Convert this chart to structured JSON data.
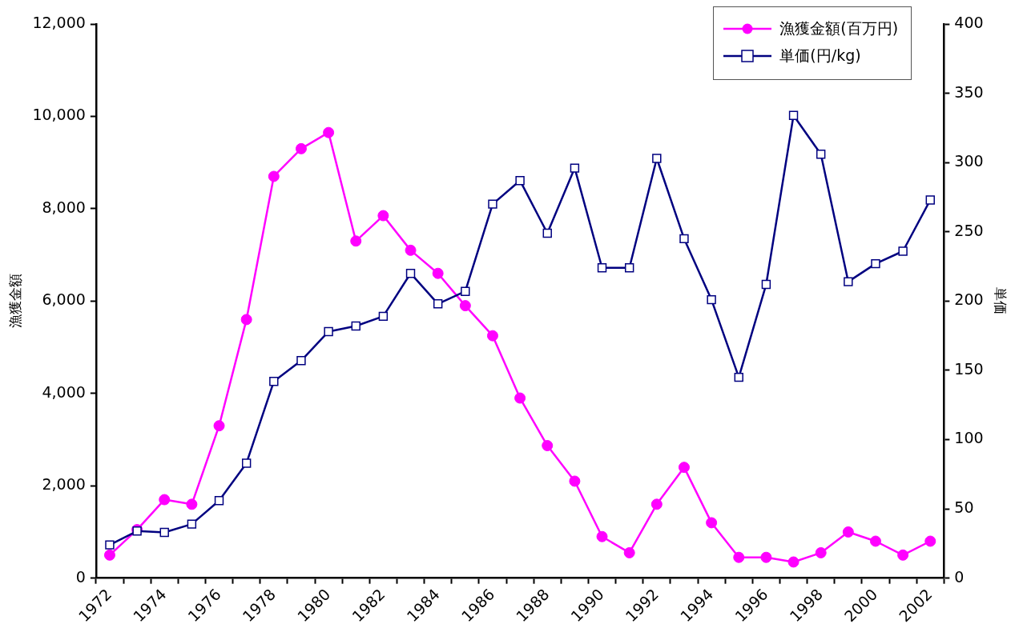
{
  "chart_data": {
    "type": "line",
    "ylabel": "漁獲金額",
    "y2label": "単価",
    "categories": [
      "1972",
      null,
      "1974",
      null,
      "1976",
      null,
      "1978",
      null,
      "1980",
      null,
      "1982",
      null,
      "1984",
      null,
      "1986",
      null,
      "1988",
      null,
      "1990",
      null,
      "1992",
      null,
      "1994",
      null,
      "1996",
      null,
      "1998",
      null,
      "2000",
      null,
      "2002"
    ],
    "series": [
      {
        "name": "漁獲金額(百万円)",
        "color": "#ff00ff",
        "marker": "circle",
        "values": [
          500,
          1050,
          1700,
          1600,
          3300,
          5600,
          8700,
          9300,
          9650,
          7300,
          7850,
          7100,
          6600,
          5900,
          5250,
          3900,
          2870,
          2100,
          900,
          550,
          1600,
          2400,
          1200,
          450,
          450,
          350,
          550,
          1000,
          800,
          500,
          800
        ]
      },
      {
        "name": "単価(円/kg)",
        "color": "#000080",
        "marker": "square",
        "axis": "y2",
        "values": [
          24,
          34,
          33,
          39,
          56,
          83,
          142,
          157,
          178,
          182,
          189,
          220,
          198,
          207,
          270,
          287,
          249,
          296,
          224,
          224,
          303,
          245,
          201,
          145,
          212,
          334,
          306,
          214,
          227,
          236,
          273
        ]
      }
    ],
    "ylim": [
      0,
      12000
    ],
    "yticks": [
      0,
      {
        "value": 2000,
        "label": "2,000"
      },
      {
        "value": 4000,
        "label": "4,000"
      },
      {
        "value": 6000,
        "label": "6,000"
      },
      {
        "value": 8000,
        "label": "8,000"
      },
      {
        "value": 10000,
        "label": "10,000"
      },
      {
        "value": 12000,
        "label": "12,000"
      }
    ],
    "y2lim": [
      0,
      400
    ],
    "y2ticks": [
      0,
      50,
      100,
      150,
      200,
      250,
      300,
      350,
      400
    ],
    "grid": false,
    "legend": "top right"
  }
}
